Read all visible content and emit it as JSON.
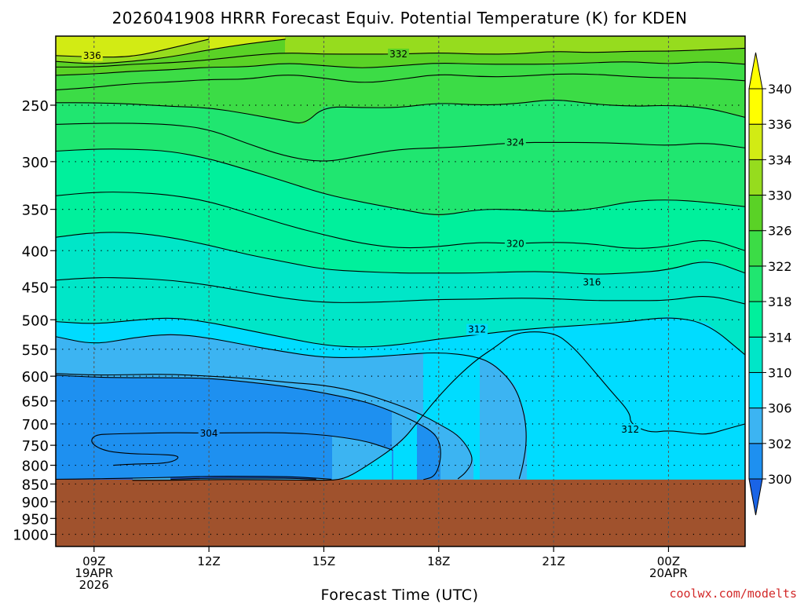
{
  "chart_data": {
    "type": "heatmap",
    "title": "2026041908 HRRR Forecast Equiv. Potential Temperature (K) for KDEN",
    "xlabel": "Forecast Time (UTC)",
    "ylabel": "",
    "credit": "coolwx.com/modelts",
    "y_scale": "log-pressure",
    "y_range_hPa": [
      1040,
      200
    ],
    "x_range_hours": [
      8,
      26
    ],
    "y_ticks": [
      {
        "value": 250,
        "label": "250"
      },
      {
        "value": 300,
        "label": "300"
      },
      {
        "value": 350,
        "label": "350"
      },
      {
        "value": 400,
        "label": "400"
      },
      {
        "value": 450,
        "label": "450"
      },
      {
        "value": 500,
        "label": "500"
      },
      {
        "value": 550,
        "label": "550"
      },
      {
        "value": 600,
        "label": "600"
      },
      {
        "value": 650,
        "label": "650"
      },
      {
        "value": 700,
        "label": "700"
      },
      {
        "value": 750,
        "label": "750"
      },
      {
        "value": 800,
        "label": "800"
      },
      {
        "value": 850,
        "label": "850"
      },
      {
        "value": 900,
        "label": "900"
      },
      {
        "value": 950,
        "label": "950"
      },
      {
        "value": 1000,
        "label": "1000"
      }
    ],
    "x_ticks": [
      {
        "value": 9,
        "lines": [
          "09Z",
          "19APR",
          "2026"
        ]
      },
      {
        "value": 12,
        "lines": [
          "12Z"
        ]
      },
      {
        "value": 15,
        "lines": [
          "15Z"
        ]
      },
      {
        "value": 18,
        "lines": [
          "18Z"
        ]
      },
      {
        "value": 21,
        "lines": [
          "21Z"
        ]
      },
      {
        "value": 24,
        "lines": [
          "00Z",
          "20APR"
        ]
      }
    ],
    "color_levels": [
      300,
      302,
      306,
      310,
      314,
      318,
      322,
      326,
      330,
      334,
      336,
      340
    ],
    "level_colors": [
      "#1a64e6",
      "#1e90f0",
      "#3cb4f2",
      "#00dcff",
      "#00e6c8",
      "#00f09c",
      "#20e670",
      "#3cdc46",
      "#5ad226",
      "#96dc1e",
      "#d2eb14",
      "#ffff00"
    ],
    "under_color": "#1e50d2",
    "terrain_color": "#a0522d",
    "surface_pressure_hPa": 838,
    "contour_labels": [
      {
        "value": "336",
        "x": 8.95,
        "p": 213
      },
      {
        "value": "332",
        "x": 16.95,
        "p": 212
      },
      {
        "value": "324",
        "x": 20.0,
        "p": 282
      },
      {
        "value": "320",
        "x": 20.0,
        "p": 391
      },
      {
        "value": "316",
        "x": 22.0,
        "p": 443
      },
      {
        "value": "312",
        "x": 19.0,
        "p": 516
      },
      {
        "value": "312",
        "x": 23.0,
        "p": 713
      },
      {
        "value": "304",
        "x": 12.0,
        "p": 722
      }
    ],
    "series": [
      {
        "value": 336,
        "x": [
          8,
          9,
          10,
          11,
          12
        ],
        "p": [
          213,
          214,
          214,
          208,
          202
        ]
      },
      {
        "value": 334,
        "x": [
          8,
          9,
          10,
          11,
          12,
          13,
          14
        ],
        "p": [
          217,
          219,
          217,
          214,
          209,
          205,
          202
        ]
      },
      {
        "value": 332,
        "x": [
          8,
          9,
          10,
          11,
          12,
          13,
          14,
          15,
          16,
          17,
          18,
          19,
          20,
          21,
          22,
          23,
          24,
          25,
          26
        ],
        "p": [
          221,
          221,
          219,
          218,
          216,
          213,
          211,
          212,
          212,
          212,
          211,
          212,
          212,
          210,
          211,
          210,
          210,
          209,
          208
        ]
      },
      {
        "value": 330,
        "x": [
          8,
          9,
          10,
          11,
          12,
          13,
          14,
          15,
          16,
          17,
          18,
          19,
          20,
          21,
          22,
          23,
          24,
          25,
          26
        ],
        "p": [
          227,
          226,
          224,
          223,
          221,
          221,
          218,
          220,
          222,
          220,
          218,
          219,
          219,
          219,
          218,
          217,
          219,
          217,
          219
        ]
      },
      {
        "value": 328,
        "x": [
          8,
          9,
          10,
          11,
          12,
          13,
          14,
          15,
          16,
          17,
          18,
          19,
          20,
          21,
          22,
          23,
          24,
          25,
          26
        ],
        "p": [
          238,
          236,
          233,
          232,
          230,
          230,
          226,
          229,
          233,
          230,
          226,
          228,
          228,
          226,
          226,
          228,
          229,
          229,
          231
        ]
      },
      {
        "value": 326,
        "x": [
          8,
          9,
          10,
          11,
          12,
          13,
          14,
          14.5,
          15,
          16,
          17,
          18,
          19,
          20,
          21,
          22,
          23,
          24,
          25,
          26
        ],
        "p": [
          248,
          248,
          249,
          251,
          252,
          257,
          263,
          266,
          251,
          252,
          252,
          248,
          250,
          249,
          245,
          249,
          251,
          250,
          252,
          260
        ]
      },
      {
        "value": 324,
        "x": [
          8,
          9,
          10,
          11,
          12,
          13,
          14,
          15,
          16,
          17,
          18,
          19,
          20,
          21,
          22,
          23,
          24,
          25,
          26
        ],
        "p": [
          266,
          265,
          265,
          266,
          270,
          283,
          295,
          301,
          294,
          288,
          287,
          285,
          282,
          282,
          282,
          283,
          285,
          282,
          287
        ]
      },
      {
        "value": 322,
        "x": [
          8,
          9,
          10,
          11,
          12,
          13,
          14,
          15,
          16,
          17,
          18,
          19,
          20,
          21,
          22,
          23,
          24,
          25,
          26
        ],
        "p": [
          290,
          288,
          288,
          290,
          297,
          308,
          320,
          333,
          342,
          350,
          358,
          350,
          350,
          353,
          350,
          341,
          339,
          342,
          347
        ]
      },
      {
        "value": 320,
        "x": [
          8,
          9,
          10,
          11,
          12,
          13,
          14,
          15,
          16,
          17,
          18,
          19,
          20,
          21,
          22,
          23,
          24,
          25,
          26
        ],
        "p": [
          335,
          331,
          331,
          334,
          341,
          354,
          368,
          380,
          391,
          397,
          395,
          389,
          391,
          389,
          391,
          398,
          395,
          384,
          400
        ]
      },
      {
        "value": 318,
        "x": [
          8,
          9,
          10,
          11,
          12,
          13,
          14,
          15,
          16,
          17,
          18,
          19,
          20,
          21,
          22,
          23,
          24,
          25,
          26
        ],
        "p": [
          383,
          377,
          377,
          383,
          393,
          405,
          415,
          425,
          428,
          430,
          430,
          430,
          428,
          428,
          432,
          430,
          426,
          411,
          430
        ]
      },
      {
        "value": 316,
        "x": [
          8,
          9,
          10,
          11,
          12,
          13,
          14,
          15,
          16,
          17,
          18,
          19,
          20,
          21,
          22,
          23,
          24,
          25,
          26
        ],
        "p": [
          440,
          436,
          437,
          440,
          447,
          457,
          467,
          473,
          473,
          471,
          468,
          468,
          466,
          467,
          470,
          470,
          470,
          461,
          475
        ]
      },
      {
        "value": 314,
        "x": [
          8,
          9,
          10,
          11,
          12,
          13,
          14,
          15,
          16,
          17,
          18,
          19,
          20,
          21,
          22,
          23,
          24,
          25,
          26
        ],
        "p": [
          503,
          507,
          501,
          496,
          504,
          517,
          530,
          543,
          547,
          542,
          532,
          525,
          517,
          512,
          508,
          503,
          495,
          505,
          560
        ]
      },
      {
        "value": 312,
        "x": [
          10,
          11,
          12,
          13,
          14,
          15,
          15.5,
          16,
          17,
          17.5,
          18,
          18.5,
          19,
          19.5,
          20,
          21,
          21.5,
          22,
          22.5,
          23,
          23,
          23.5,
          24,
          24.5,
          25,
          25.5,
          26
        ],
        "p": [
          840,
          840,
          838,
          838,
          839,
          840,
          838,
          810,
          745,
          690,
          640,
          600,
          568,
          545,
          520,
          520,
          545,
          585,
          630,
          675,
          700,
          720,
          715,
          720,
          725,
          712,
          700
        ]
      },
      {
        "value": 310,
        "x": [
          8,
          9,
          10,
          11,
          12,
          13,
          14,
          15,
          16,
          17,
          18,
          19,
          19.5,
          20,
          20.25,
          20.3,
          20.2,
          20.1
        ],
        "p": [
          528,
          542,
          530,
          523,
          530,
          543,
          555,
          565,
          565,
          560,
          555,
          563,
          580,
          620,
          680,
          740,
          800,
          836
        ]
      },
      {
        "value": 308,
        "x": [
          8,
          9,
          10,
          11,
          12,
          13,
          14,
          15,
          16,
          17,
          17.5,
          18,
          18.5,
          18.8,
          18.9,
          18.7,
          18.5
        ],
        "p": [
          595,
          598,
          597,
          596,
          600,
          604,
          612,
          617,
          633,
          660,
          677,
          700,
          725,
          760,
          790,
          820,
          836
        ]
      },
      {
        "value": 306,
        "x": [
          8,
          9,
          10,
          11,
          12,
          13,
          14,
          15,
          16,
          16.5,
          17,
          17.5,
          17.9,
          18.05,
          18.05,
          17.9,
          17.6
        ],
        "p": [
          598,
          602,
          603,
          603,
          604,
          611,
          620,
          633,
          650,
          663,
          680,
          700,
          722,
          750,
          790,
          830,
          838
        ]
      },
      {
        "value": 304,
        "x": [
          16.8,
          16.5,
          16,
          15,
          14,
          13,
          12,
          11,
          10,
          9.5,
          9,
          8.9,
          9.3,
          10,
          10.5,
          11.3,
          11,
          10,
          9.5
        ],
        "p": [
          762,
          752,
          738,
          725,
          720,
          720,
          721,
          720,
          722,
          723,
          725,
          745,
          765,
          771,
          772,
          775,
          795,
          797,
          800
        ]
      },
      {
        "value": 302,
        "x": [
          8,
          9,
          10,
          11,
          12,
          13,
          14,
          14.5,
          15.2
        ],
        "p": [
          837,
          836,
          834,
          832,
          829,
          829,
          830,
          832,
          837
        ]
      },
      {
        "value": 300,
        "x": [
          11,
          12,
          13,
          14,
          14.8
        ],
        "p": [
          837,
          834,
          834,
          834,
          837
        ]
      }
    ]
  }
}
